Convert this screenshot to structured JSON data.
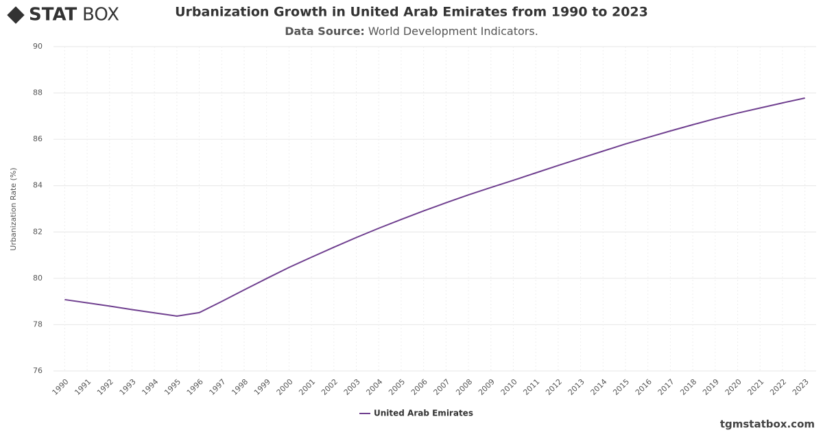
{
  "logo": {
    "strong": "STAT",
    "light": "BOX"
  },
  "chart_data": {
    "type": "line",
    "title": "Urbanization Growth in United Arab Emirates from 1990 to 2023",
    "subtitle_label": "Data Source:",
    "subtitle": "World Development Indicators.",
    "y_label": "Urbanization Rate (%)",
    "categories": [
      "1990",
      "1991",
      "1992",
      "1993",
      "1994",
      "1995",
      "1996",
      "1997",
      "1998",
      "1999",
      "2000",
      "2001",
      "2002",
      "2003",
      "2004",
      "2005",
      "2006",
      "2007",
      "2008",
      "2009",
      "2010",
      "2011",
      "2012",
      "2013",
      "2014",
      "2015",
      "2016",
      "2017",
      "2018",
      "2019",
      "2020",
      "2021",
      "2022",
      "2023"
    ],
    "series": [
      {
        "name": "United Arab Emirates",
        "color": "#6f3f8f",
        "values": [
          79.08,
          78.94,
          78.8,
          78.65,
          78.51,
          78.37,
          78.52,
          79.0,
          79.5,
          79.99,
          80.47,
          80.91,
          81.34,
          81.76,
          82.16,
          82.54,
          82.91,
          83.26,
          83.6,
          83.92,
          84.23,
          84.55,
          84.87,
          85.18,
          85.49,
          85.8,
          86.08,
          86.36,
          86.63,
          86.89,
          87.13,
          87.35,
          87.57,
          87.78
        ]
      }
    ],
    "ylim": [
      76,
      90
    ],
    "yticks": [
      76,
      78,
      80,
      82,
      84,
      86,
      88,
      90
    ],
    "grid": true
  },
  "watermark": "tgmstatbox.com"
}
